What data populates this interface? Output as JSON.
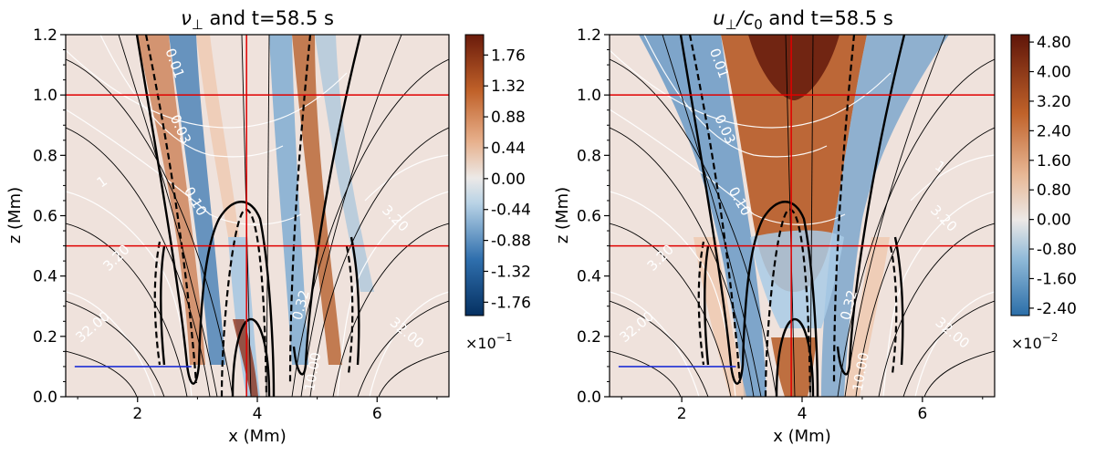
{
  "figure": {
    "colors": {
      "red_line": "#e00000",
      "blue_line": "#1f2fd6",
      "field_line": "#000000",
      "contour_white": "#ffffff",
      "background_neutral": "#efe2dc"
    }
  },
  "chart_data": [
    {
      "type": "heatmap",
      "title_main": "ν",
      "title_sub": "⊥",
      "title_rest": " and t=58.5 s",
      "xlabel": "x (Mm)",
      "ylabel": "z (Mm)",
      "xlim": [
        0.8,
        7.2
      ],
      "ylim": [
        0.0,
        1.2
      ],
      "x_ticks": [
        2,
        4,
        6
      ],
      "x_tick_labels": [
        "2",
        "4",
        "6"
      ],
      "y_ticks": [
        0.0,
        0.2,
        0.4,
        0.6,
        0.8,
        1.0,
        1.2
      ],
      "y_tick_labels": [
        "0.0",
        "0.2",
        "0.4",
        "0.6",
        "0.8",
        "1.0",
        "1.2"
      ],
      "red_vertical_x": 3.82,
      "red_horizontal_z": [
        1.0,
        0.5
      ],
      "blue_segment": {
        "x0": 0.95,
        "x1": 2.9,
        "z": 0.1
      },
      "colorbar": {
        "tick_labels": [
          "1.76",
          "1.32",
          "0.88",
          "0.44",
          "0.00",
          "-0.44",
          "-0.88",
          "-1.32",
          "-1.76"
        ],
        "range": [
          -1.95,
          2.05
        ],
        "multiplier_text": "×10",
        "multiplier_exp": "−1",
        "cmap": "diverging_brown_blue"
      },
      "contour_labels": [
        {
          "text": "0.01",
          "x": 2.55,
          "z": 1.1,
          "angle": 70
        },
        {
          "text": "0.03",
          "x": 2.65,
          "z": 0.88,
          "angle": 65
        },
        {
          "text": "0.10",
          "x": 2.9,
          "z": 0.64,
          "angle": 60
        },
        {
          "text": "1",
          "x": 1.45,
          "z": 0.7,
          "angle": -35
        },
        {
          "text": "3.20",
          "x": 1.7,
          "z": 0.45,
          "angle": -45
        },
        {
          "text": "32.00",
          "x": 1.3,
          "z": 0.22,
          "angle": -40
        },
        {
          "text": "0.32",
          "x": 4.8,
          "z": 0.3,
          "angle": -75
        },
        {
          "text": "3.20",
          "x": 6.25,
          "z": 0.58,
          "angle": 45
        },
        {
          "text": "32.00",
          "x": 6.45,
          "z": 0.2,
          "angle": 40
        },
        {
          "text": "10.00",
          "x": 5.0,
          "z": 0.08,
          "angle": -80
        }
      ]
    },
    {
      "type": "heatmap",
      "title_main": "u",
      "title_sub": "⊥",
      "title_rest": "/c",
      "title_sub2": "0",
      "title_tail": " and t=58.5 s",
      "xlabel": "x (Mm)",
      "ylabel": "z (Mm)",
      "xlim": [
        0.8,
        7.2
      ],
      "ylim": [
        0.0,
        1.2
      ],
      "x_ticks": [
        2,
        4,
        6
      ],
      "x_tick_labels": [
        "2",
        "4",
        "6"
      ],
      "y_ticks": [
        0.0,
        0.2,
        0.4,
        0.6,
        0.8,
        1.0,
        1.2
      ],
      "y_tick_labels": [
        "0.0",
        "0.2",
        "0.4",
        "0.6",
        "0.8",
        "1.0",
        "1.2"
      ],
      "red_vertical_x": 3.82,
      "red_horizontal_z": [
        1.0,
        0.5
      ],
      "blue_segment": {
        "x0": 0.95,
        "x1": 2.9,
        "z": 0.1
      },
      "colorbar": {
        "tick_labels": [
          "4.80",
          "4.00",
          "3.20",
          "2.40",
          "1.60",
          "0.80",
          "0.00",
          "-0.80",
          "-1.60",
          "-2.40"
        ],
        "range": [
          -2.6,
          5.0
        ],
        "multiplier_text": "×10",
        "multiplier_exp": "−2",
        "cmap": "diverging_brown_blue"
      },
      "contour_labels": [
        {
          "text": "0.01",
          "x": 2.55,
          "z": 1.1,
          "angle": 70
        },
        {
          "text": "0.03",
          "x": 2.65,
          "z": 0.88,
          "angle": 65
        },
        {
          "text": "0.10",
          "x": 2.9,
          "z": 0.64,
          "angle": 60
        },
        {
          "text": "1",
          "x": 6.25,
          "z": 0.75,
          "angle": 35
        },
        {
          "text": "3.20",
          "x": 1.7,
          "z": 0.45,
          "angle": -45
        },
        {
          "text": "32.00",
          "x": 1.3,
          "z": 0.22,
          "angle": -40
        },
        {
          "text": "0.32",
          "x": 4.85,
          "z": 0.3,
          "angle": -75
        },
        {
          "text": "3.20",
          "x": 6.3,
          "z": 0.58,
          "angle": 45
        },
        {
          "text": "32.00",
          "x": 6.45,
          "z": 0.2,
          "angle": 40
        },
        {
          "text": "10.00",
          "x": 5.05,
          "z": 0.08,
          "angle": -80
        }
      ]
    }
  ]
}
